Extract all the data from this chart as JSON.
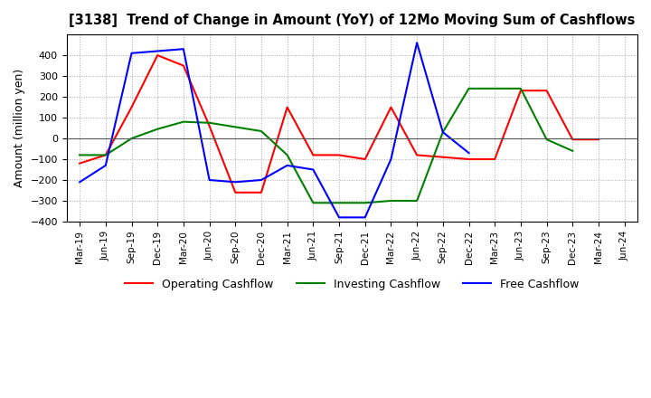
{
  "title": "[3138]  Trend of Change in Amount (YoY) of 12Mo Moving Sum of Cashflows",
  "ylabel": "Amount (million yen)",
  "ylim": [
    -400,
    500
  ],
  "yticks": [
    -400,
    -300,
    -200,
    -100,
    0,
    100,
    200,
    300,
    400
  ],
  "x_labels": [
    "Mar-19",
    "Jun-19",
    "Sep-19",
    "Dec-19",
    "Mar-20",
    "Jun-20",
    "Sep-20",
    "Dec-20",
    "Mar-21",
    "Jun-21",
    "Sep-21",
    "Dec-21",
    "Mar-22",
    "Jun-22",
    "Sep-22",
    "Dec-22",
    "Mar-23",
    "Jun-23",
    "Sep-23",
    "Dec-23",
    "Mar-24",
    "Jun-24"
  ],
  "operating_cashflow": [
    -120,
    -80,
    150,
    400,
    350,
    60,
    -260,
    -260,
    150,
    -80,
    -80,
    -100,
    150,
    -80,
    -90,
    -100,
    -100,
    230,
    230,
    -5,
    -5,
    null
  ],
  "investing_cashflow": [
    -80,
    -80,
    0,
    45,
    80,
    75,
    55,
    35,
    -80,
    -310,
    -310,
    -310,
    -300,
    -300,
    30,
    240,
    240,
    240,
    -5,
    -60,
    null,
    null
  ],
  "free_cashflow": [
    -210,
    -130,
    410,
    420,
    430,
    -200,
    -210,
    -200,
    -130,
    -150,
    -380,
    -380,
    -100,
    460,
    30,
    -70,
    null,
    null,
    null,
    null,
    null,
    null
  ],
  "line_colors": {
    "operating": "#ff0000",
    "investing": "#008000",
    "free": "#0000ff"
  },
  "legend_labels": [
    "Operating Cashflow",
    "Investing Cashflow",
    "Free Cashflow"
  ],
  "background_color": "#ffffff",
  "grid_color": "#aaaaaa"
}
